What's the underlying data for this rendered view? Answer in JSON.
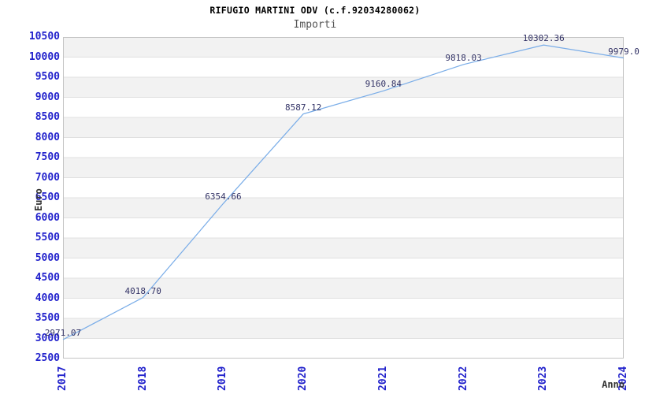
{
  "chart_data": {
    "type": "line",
    "title": "RIFUGIO MARTINI ODV (c.f.92034280062)",
    "subtitle": "Importi",
    "xlabel": "Anno",
    "ylabel": "Euro",
    "categories": [
      "2017",
      "2018",
      "2019",
      "2020",
      "2021",
      "2022",
      "2023",
      "2024"
    ],
    "values": [
      2971.07,
      4018.7,
      6354.66,
      8587.12,
      9160.84,
      9818.03,
      10302.36,
      9979.0
    ],
    "point_labels": [
      "2971.07",
      "4018.70",
      "6354.66",
      "8587.12",
      "9160.84",
      "9818.03",
      "10302.36",
      "9979.0"
    ],
    "ylim": [
      2500,
      10500
    ],
    "ytick_step": 500,
    "grid": true,
    "legend": "none",
    "band_fill": "alternating-horizontal",
    "colors": {
      "line": "#7aade8",
      "tick_label": "#2222cc",
      "point_label": "#333366",
      "band_gray": "#f2f2f2",
      "band_white": "#ffffff",
      "grid_line": "#e0e0e0",
      "plot_border": "#c4c4c4",
      "title": "#000000",
      "subtitle": "#555555",
      "axis_title": "#333333"
    }
  }
}
